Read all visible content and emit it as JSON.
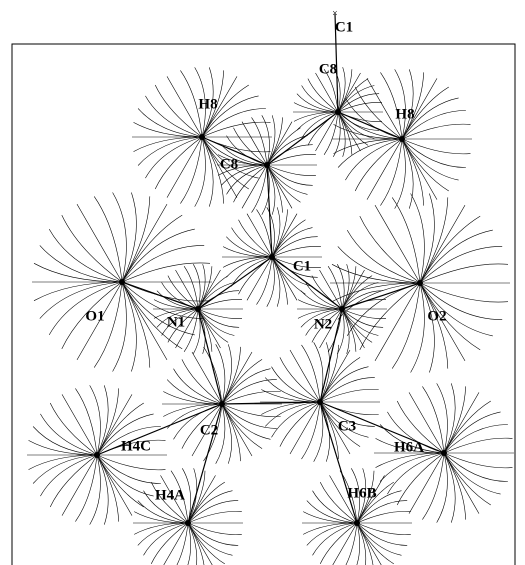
{
  "atoms": [
    {
      "label": "C1"
    },
    {
      "label": "C8"
    },
    {
      "label": "H8"
    },
    {
      "label": "H8"
    },
    {
      "label": "C8"
    },
    {
      "label": "C1"
    },
    {
      "label": "O1"
    },
    {
      "label": "N1"
    },
    {
      "label": "N2"
    },
    {
      "label": "O2"
    },
    {
      "label": "C2"
    },
    {
      "label": "C3"
    },
    {
      "label": "H4C"
    },
    {
      "label": "H6A"
    },
    {
      "label": "H4A"
    },
    {
      "label": "H6B"
    }
  ]
}
